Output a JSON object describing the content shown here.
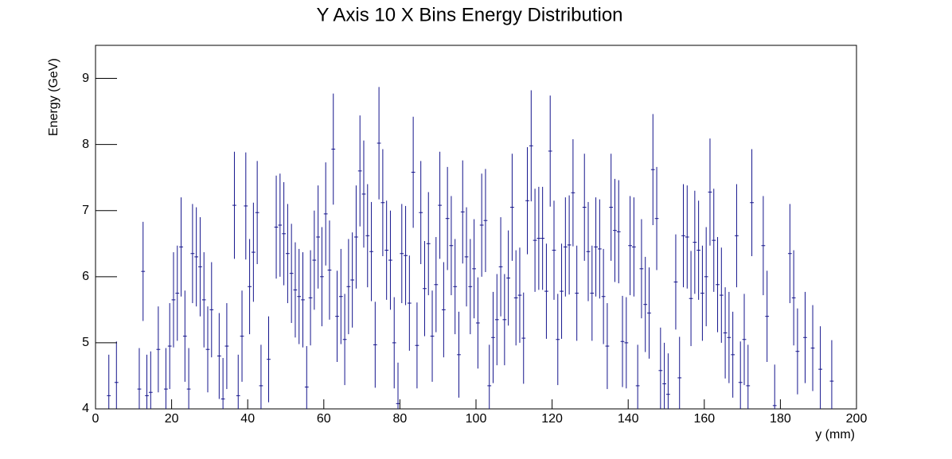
{
  "chart_data": {
    "type": "errorbar",
    "title": "Y Axis 10 X Bins Energy Distribution",
    "xlabel": "y (mm)",
    "ylabel": "Energy (GeV)",
    "color": "#14148c",
    "xlim": [
      0,
      200
    ],
    "xticks": [
      0,
      20,
      40,
      60,
      80,
      100,
      120,
      140,
      160,
      180,
      200
    ],
    "ylim": [
      4,
      9.5
    ],
    "yticks": [
      4,
      5,
      6,
      7,
      8,
      9
    ],
    "x": [
      3.5,
      5.5,
      11.5,
      12.5,
      13.5,
      14.5,
      16.5,
      18.5,
      19.5,
      20.5,
      21.5,
      22.5,
      23.5,
      24.5,
      25.5,
      26.5,
      27.5,
      28.5,
      29.5,
      30.5,
      32.5,
      33.5,
      34.5,
      36.5,
      37.5,
      38.5,
      39.5,
      40.5,
      41.5,
      42.5,
      43.5,
      45.5,
      47.5,
      48.5,
      49.5,
      50.5,
      51.5,
      52.5,
      53.5,
      54.5,
      55.5,
      56.5,
      57.5,
      58.5,
      59.5,
      60.5,
      61.5,
      62.5,
      63.5,
      64.5,
      65.5,
      66.5,
      67.5,
      68.5,
      69.5,
      70.5,
      71.5,
      72.5,
      73.5,
      74.5,
      75.5,
      76.5,
      77.5,
      78.5,
      79.5,
      80.5,
      81.5,
      82.5,
      83.5,
      84.5,
      85.5,
      86.5,
      87.5,
      88.5,
      89.5,
      90.5,
      91.5,
      92.5,
      93.5,
      94.5,
      95.5,
      96.5,
      97.5,
      98.5,
      99.5,
      100.5,
      101.5,
      102.5,
      103.5,
      104.5,
      105.5,
      106.5,
      107.5,
      108.5,
      109.5,
      110.5,
      111.5,
      112.5,
      113.5,
      114.5,
      115.5,
      116.5,
      117.5,
      118.5,
      119.5,
      120.5,
      121.5,
      122.5,
      123.5,
      124.5,
      125.5,
      126.5,
      128.5,
      129.5,
      130.5,
      131.5,
      132.5,
      133.5,
      134.5,
      135.5,
      136.5,
      137.5,
      138.5,
      139.5,
      140.5,
      141.5,
      142.5,
      143.5,
      144.5,
      145.5,
      146.5,
      147.5,
      148.5,
      149.5,
      150.5,
      152.5,
      153.5,
      154.5,
      155.5,
      156.5,
      157.5,
      158.5,
      159.5,
      160.5,
      161.5,
      162.5,
      163.5,
      164.5,
      165.5,
      166.5,
      167.5,
      168.5,
      169.5,
      170.5,
      171.5,
      172.5,
      175.5,
      176.5,
      178.5,
      182.5,
      183.5,
      184.5,
      186.5,
      188.5,
      190.5,
      193.5
    ],
    "values": [
      4.2,
      4.4,
      4.3,
      6.08,
      4.2,
      4.25,
      4.9,
      4.3,
      4.95,
      5.65,
      5.75,
      6.45,
      5.1,
      4.3,
      6.35,
      6.3,
      6.15,
      5.65,
      4.9,
      5.5,
      4.8,
      4.15,
      4.95,
      7.08,
      4.2,
      5.1,
      7.07,
      5.85,
      6.37,
      6.97,
      4.35,
      4.75,
      6.75,
      6.78,
      6.65,
      6.35,
      6.05,
      5.8,
      5.7,
      5.65,
      4.33,
      5.68,
      6.25,
      6.6,
      6.0,
      6.95,
      6.1,
      7.93,
      5.4,
      5.7,
      5.05,
      5.85,
      5.95,
      6.6,
      7.6,
      7.25,
      6.62,
      6.38,
      4.97,
      8.02,
      7.12,
      6.4,
      6.25,
      5.0,
      4.08,
      6.35,
      6.32,
      5.6,
      7.58,
      4.96,
      6.97,
      5.82,
      6.5,
      5.1,
      5.88,
      7.08,
      5.5,
      6.88,
      6.47,
      5.85,
      4.82,
      6.98,
      6.3,
      5.85,
      6.12,
      5.3,
      6.78,
      6.85,
      4.35,
      5.08,
      5.35,
      6.15,
      5.35,
      5.98,
      7.05,
      5.68,
      5.72,
      5.07,
      7.15,
      7.98,
      6.55,
      6.58,
      6.58,
      5.78,
      7.9,
      6.4,
      5.05,
      5.78,
      6.45,
      6.48,
      7.27,
      5.75,
      7.05,
      6.38,
      5.75,
      6.45,
      6.42,
      5.7,
      4.95,
      7.05,
      6.7,
      6.68,
      5.02,
      5.0,
      6.47,
      6.45,
      4.35,
      6.12,
      5.58,
      5.45,
      7.62,
      6.88,
      4.58,
      4.38,
      4.22,
      5.92,
      4.47,
      6.62,
      6.6,
      5.67,
      6.52,
      6.4,
      5.75,
      6.0,
      7.28,
      6.55,
      5.88,
      5.72,
      5.15,
      5.08,
      4.82,
      6.62,
      4.4,
      5.05,
      4.35,
      7.12,
      6.47,
      5.4,
      4.05,
      6.35,
      5.68,
      4.87,
      5.08,
      4.92,
      4.6,
      4.42
    ],
    "errors": [
      0.62,
      0.62,
      0.62,
      0.75,
      0.62,
      0.62,
      0.65,
      0.62,
      0.65,
      0.72,
      0.72,
      0.75,
      0.69,
      0.62,
      0.75,
      0.75,
      0.75,
      0.72,
      0.65,
      0.72,
      0.65,
      0.62,
      0.65,
      0.81,
      0.62,
      0.69,
      0.81,
      0.72,
      0.75,
      0.78,
      0.62,
      0.65,
      0.78,
      0.78,
      0.78,
      0.75,
      0.75,
      0.72,
      0.72,
      0.72,
      0.62,
      0.72,
      0.75,
      0.78,
      0.75,
      0.78,
      0.75,
      0.84,
      0.69,
      0.72,
      0.69,
      0.72,
      0.72,
      0.78,
      0.84,
      0.81,
      0.78,
      0.75,
      0.65,
      0.85,
      0.81,
      0.75,
      0.75,
      0.69,
      0.62,
      0.75,
      0.75,
      0.72,
      0.84,
      0.65,
      0.78,
      0.72,
      0.78,
      0.69,
      0.72,
      0.81,
      0.72,
      0.78,
      0.75,
      0.72,
      0.65,
      0.78,
      0.75,
      0.72,
      0.75,
      0.69,
      0.78,
      0.78,
      0.62,
      0.69,
      0.69,
      0.75,
      0.69,
      0.72,
      0.81,
      0.72,
      0.72,
      0.69,
      0.81,
      0.84,
      0.78,
      0.78,
      0.78,
      0.72,
      0.84,
      0.75,
      0.69,
      0.72,
      0.75,
      0.75,
      0.81,
      0.72,
      0.81,
      0.75,
      0.72,
      0.75,
      0.75,
      0.72,
      0.65,
      0.81,
      0.78,
      0.78,
      0.69,
      0.69,
      0.75,
      0.75,
      0.62,
      0.75,
      0.72,
      0.69,
      0.84,
      0.78,
      0.65,
      0.62,
      0.62,
      0.72,
      0.62,
      0.78,
      0.78,
      0.72,
      0.78,
      0.75,
      0.72,
      0.75,
      0.81,
      0.78,
      0.72,
      0.72,
      0.69,
      0.69,
      0.65,
      0.78,
      0.62,
      0.69,
      0.62,
      0.81,
      0.75,
      0.69,
      0.62,
      0.75,
      0.72,
      0.65,
      0.69,
      0.65,
      0.65,
      0.62
    ]
  }
}
